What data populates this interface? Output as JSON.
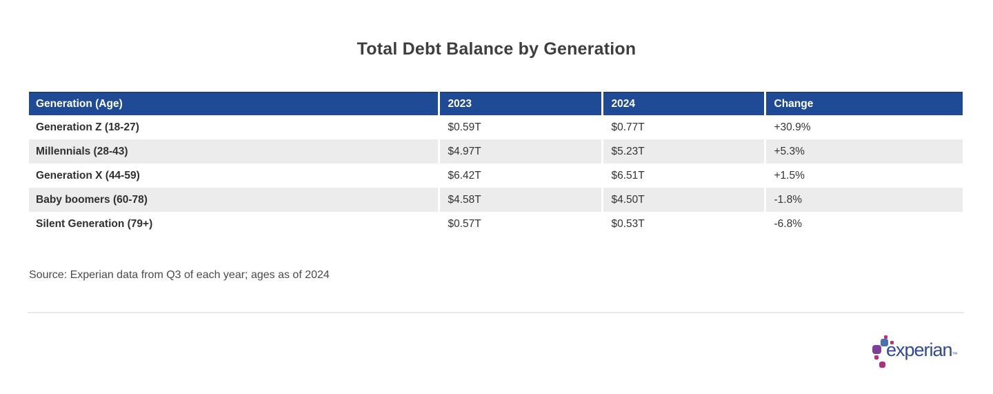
{
  "title": "Total Debt Balance by Generation",
  "chart_data": {
    "type": "table",
    "title": "Total Debt Balance by Generation",
    "columns": [
      "Generation (Age)",
      "2023",
      "2024",
      "Change"
    ],
    "rows": [
      [
        "Generation Z (18-27)",
        "$0.59T",
        "$0.77T",
        "+30.9%"
      ],
      [
        "Millennials (28-43)",
        "$4.97T",
        "$5.23T",
        "+5.3%"
      ],
      [
        "Generation X (44-59)",
        "$6.42T",
        "$6.51T",
        "+1.5%"
      ],
      [
        "Baby boomers (60-78)",
        "$4.58T",
        "$4.50T",
        "-1.8%"
      ],
      [
        "Silent Generation (79+)",
        "$0.57T",
        "$0.53T",
        "-6.8%"
      ]
    ],
    "source_note": "Source: Experian data from Q3 of each year; ages as of 2024",
    "layout_hints": {
      "header_style": "solid blue header row, white bold text",
      "row_striping": "alternate white / light gray starting white",
      "value_alignment": "left"
    }
  },
  "source": "Source: Experian data from Q3 of each year; ages as of 2024",
  "logo": {
    "wordmark": "experian",
    "trademark": "™"
  },
  "colors": {
    "header_blue": "#1f4a96",
    "header_border_blue": "#1b3e7d",
    "stripe_gray": "#ececec",
    "title_gray": "#3e3e3e",
    "body_text": "#333333",
    "divider_gray": "#e9e9e9",
    "logo_wordmark_blue": "#2d4a99",
    "logo_light_blue": "#4a70b0",
    "logo_purple": "#7d3f98",
    "logo_magenta": "#ba2f7d"
  }
}
